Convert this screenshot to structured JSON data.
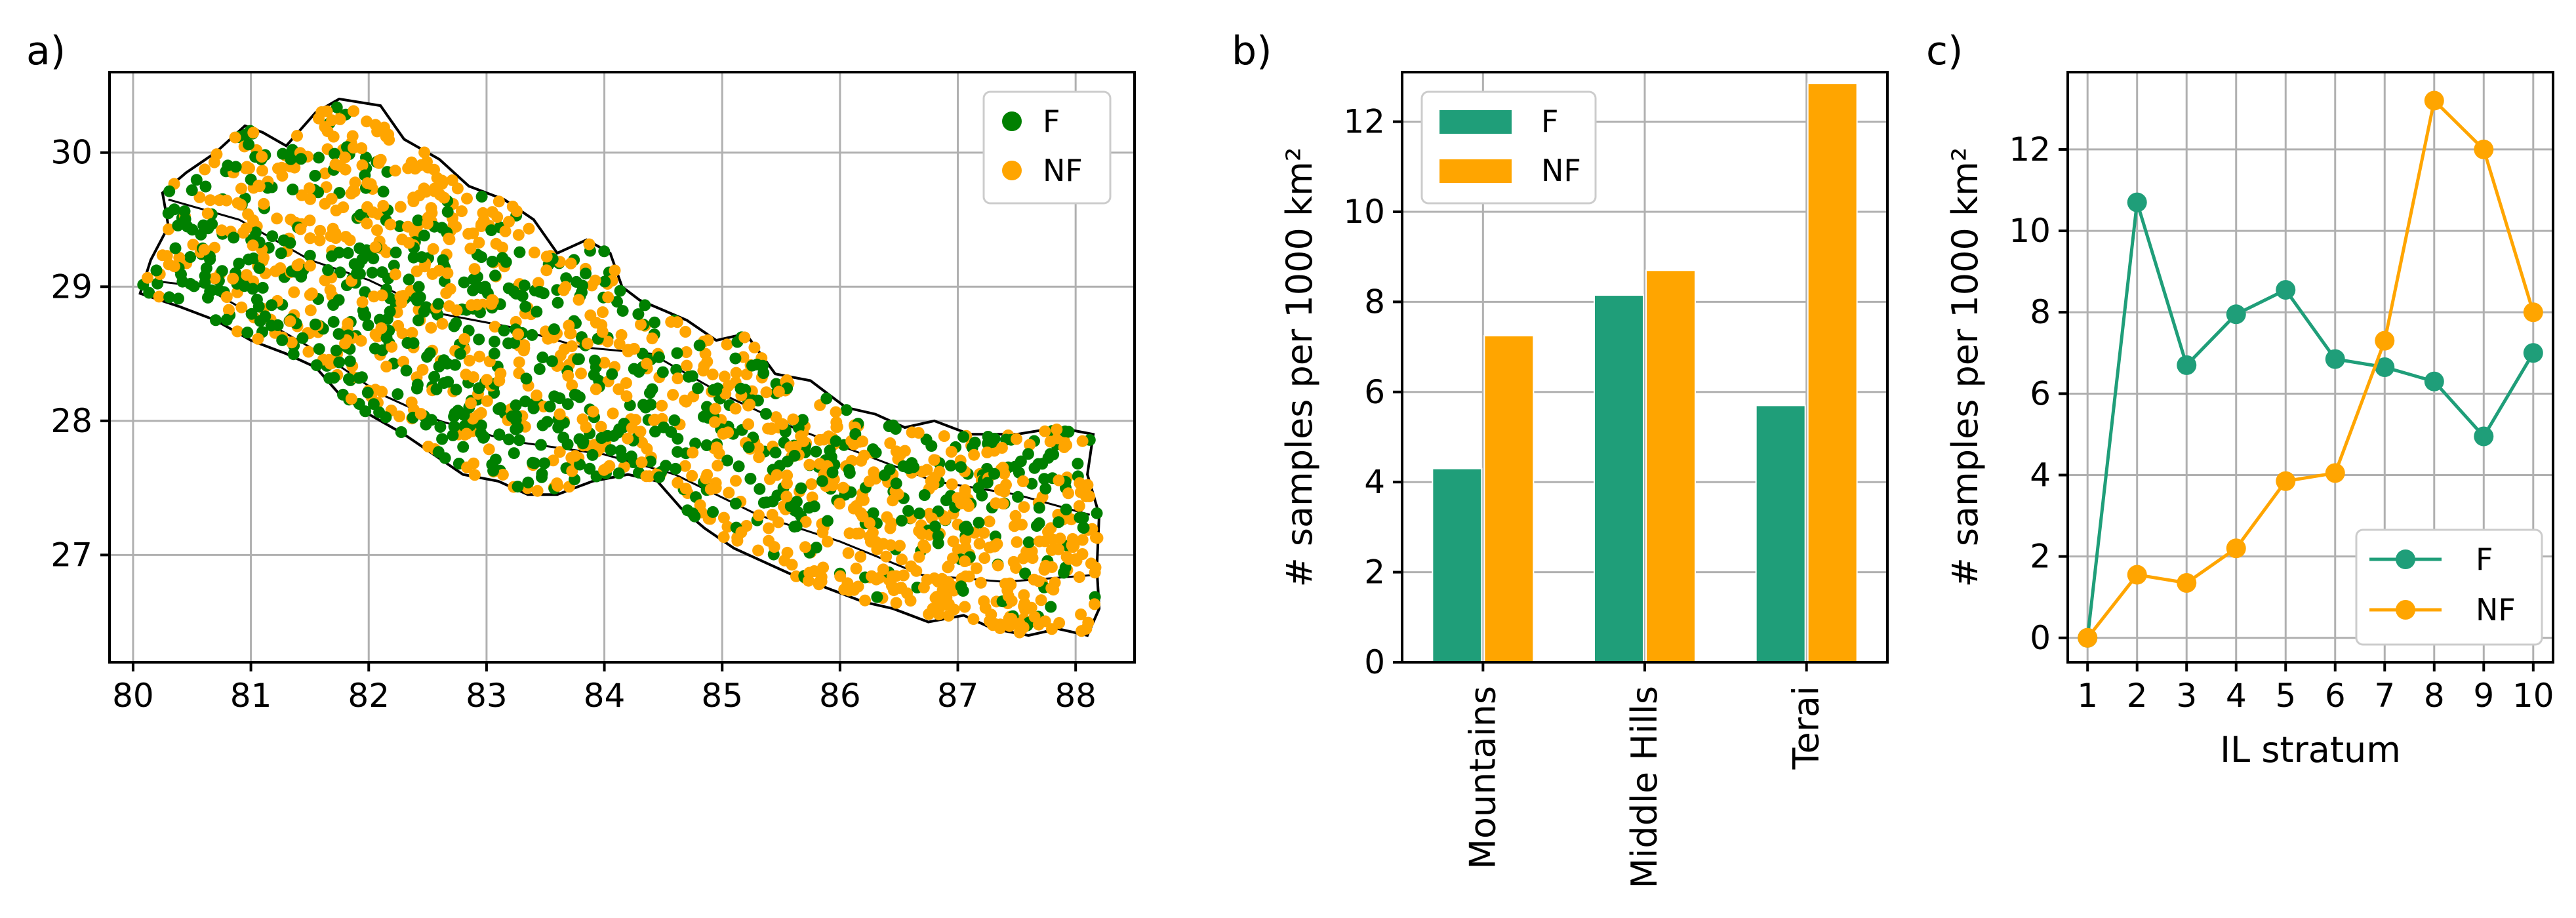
{
  "colors": {
    "F": "#1f9e79",
    "NF": "#ffa500",
    "map_points_F": "#008000",
    "boundary": "#000000",
    "grid": "#b0b0b0"
  },
  "chart_data": [
    {
      "type": "scatter",
      "panel": "a)",
      "title": "",
      "xlabel": "",
      "ylabel": "",
      "xlim": [
        79.8,
        88.5
      ],
      "ylim": [
        26.2,
        30.6
      ],
      "xticks": [
        80,
        81,
        82,
        83,
        84,
        85,
        86,
        87,
        88
      ],
      "yticks": [
        27,
        28,
        29,
        30
      ],
      "grid": true,
      "legend": {
        "placement": "top-right",
        "entries": [
          "F",
          "NF"
        ]
      },
      "series": [
        {
          "name": "F",
          "description_points": "forest sample locations scattered across Nepal"
        },
        {
          "name": "NF",
          "description_points": "non-forest sample locations scattered across Nepal"
        }
      ],
      "boundary_lonlat": [
        [
          80.06,
          28.95
        ],
        [
          80.15,
          29.2
        ],
        [
          80.3,
          29.45
        ],
        [
          80.25,
          29.7
        ],
        [
          80.45,
          29.85
        ],
        [
          80.7,
          30.0
        ],
        [
          80.95,
          30.2
        ],
        [
          81.1,
          30.15
        ],
        [
          81.3,
          30.05
        ],
        [
          81.55,
          30.3
        ],
        [
          81.75,
          30.4
        ],
        [
          82.1,
          30.35
        ],
        [
          82.3,
          30.1
        ],
        [
          82.6,
          29.95
        ],
        [
          82.85,
          29.75
        ],
        [
          83.15,
          29.65
        ],
        [
          83.4,
          29.5
        ],
        [
          83.6,
          29.25
        ],
        [
          83.85,
          29.35
        ],
        [
          84.05,
          29.25
        ],
        [
          84.15,
          29.0
        ],
        [
          84.3,
          28.9
        ],
        [
          84.7,
          28.75
        ],
        [
          84.95,
          28.6
        ],
        [
          85.2,
          28.65
        ],
        [
          85.45,
          28.35
        ],
        [
          85.75,
          28.3
        ],
        [
          86.05,
          28.1
        ],
        [
          86.3,
          28.05
        ],
        [
          86.55,
          27.95
        ],
        [
          86.8,
          28.0
        ],
        [
          87.1,
          27.9
        ],
        [
          87.5,
          27.9
        ],
        [
          87.85,
          27.95
        ],
        [
          88.15,
          27.9
        ],
        [
          88.1,
          27.6
        ],
        [
          88.2,
          27.3
        ],
        [
          88.18,
          26.9
        ],
        [
          88.2,
          26.6
        ],
        [
          88.1,
          26.4
        ],
        [
          87.85,
          26.45
        ],
        [
          87.6,
          26.4
        ],
        [
          87.3,
          26.45
        ],
        [
          87.05,
          26.55
        ],
        [
          86.75,
          26.5
        ],
        [
          86.45,
          26.6
        ],
        [
          86.2,
          26.65
        ],
        [
          85.9,
          26.75
        ],
        [
          85.6,
          26.85
        ],
        [
          85.35,
          26.95
        ],
        [
          85.1,
          27.05
        ],
        [
          84.85,
          27.2
        ],
        [
          84.65,
          27.35
        ],
        [
          84.45,
          27.55
        ],
        [
          84.2,
          27.6
        ],
        [
          83.9,
          27.55
        ],
        [
          83.6,
          27.45
        ],
        [
          83.35,
          27.45
        ],
        [
          83.1,
          27.55
        ],
        [
          82.8,
          27.6
        ],
        [
          82.55,
          27.75
        ],
        [
          82.3,
          27.9
        ],
        [
          82.0,
          28.05
        ],
        [
          81.75,
          28.2
        ],
        [
          81.55,
          28.4
        ],
        [
          81.3,
          28.5
        ],
        [
          81.0,
          28.6
        ],
        [
          80.7,
          28.75
        ],
        [
          80.4,
          28.85
        ],
        [
          80.06,
          28.95
        ]
      ],
      "internal_borders_lonlat": [
        [
          [
            80.1,
            29.05
          ],
          [
            80.6,
            29.0
          ],
          [
            81.1,
            28.75
          ],
          [
            81.6,
            28.5
          ],
          [
            82.1,
            28.2
          ],
          [
            82.6,
            28.0
          ],
          [
            83.2,
            27.85
          ],
          [
            84.0,
            27.75
          ],
          [
            84.6,
            27.6
          ],
          [
            85.3,
            27.3
          ],
          [
            86.0,
            27.1
          ],
          [
            86.7,
            26.85
          ],
          [
            87.4,
            26.8
          ],
          [
            88.15,
            26.85
          ]
        ],
        [
          [
            80.3,
            29.65
          ],
          [
            80.9,
            29.5
          ],
          [
            81.5,
            29.2
          ],
          [
            82.0,
            29.05
          ],
          [
            82.6,
            28.8
          ],
          [
            83.2,
            28.7
          ],
          [
            83.8,
            28.55
          ],
          [
            84.4,
            28.5
          ],
          [
            85.0,
            28.2
          ],
          [
            85.6,
            27.95
          ],
          [
            86.2,
            27.75
          ],
          [
            86.8,
            27.55
          ],
          [
            87.5,
            27.45
          ],
          [
            88.12,
            27.3
          ]
        ]
      ]
    },
    {
      "type": "bar",
      "panel": "b)",
      "title": "",
      "xlabel": "",
      "ylabel": "# samples per 1000 km²",
      "ylim": [
        0,
        13.1
      ],
      "yticks": [
        0,
        2,
        4,
        6,
        8,
        10,
        12
      ],
      "grid": true,
      "legend": {
        "placement": "top-left",
        "entries": [
          "F",
          "NF"
        ]
      },
      "categories": [
        "Mountains",
        "Middle Hills",
        "Terai"
      ],
      "series": [
        {
          "name": "F",
          "values": [
            4.3,
            8.15,
            5.7
          ]
        },
        {
          "name": "NF",
          "values": [
            7.25,
            8.7,
            12.85
          ]
        }
      ]
    },
    {
      "type": "line",
      "panel": "c)",
      "title": "",
      "xlabel": "IL stratum",
      "ylabel": "# samples per 1000 km²",
      "ylim": [
        -0.6,
        13.9
      ],
      "xlim": [
        0.6,
        10.4
      ],
      "yticks": [
        0,
        2,
        4,
        6,
        8,
        10,
        12
      ],
      "grid": true,
      "legend": {
        "placement": "bottom-right",
        "entries": [
          "F",
          "NF"
        ]
      },
      "x": [
        1,
        2,
        3,
        4,
        5,
        6,
        7,
        8,
        9,
        10
      ],
      "series": [
        {
          "name": "F",
          "values": [
            0,
            10.7,
            6.7,
            7.95,
            8.55,
            6.85,
            6.65,
            6.3,
            4.95,
            7.0
          ]
        },
        {
          "name": "NF",
          "values": [
            0,
            1.55,
            1.35,
            2.2,
            3.85,
            4.05,
            7.3,
            13.2,
            12.0,
            8.0
          ]
        }
      ]
    }
  ]
}
